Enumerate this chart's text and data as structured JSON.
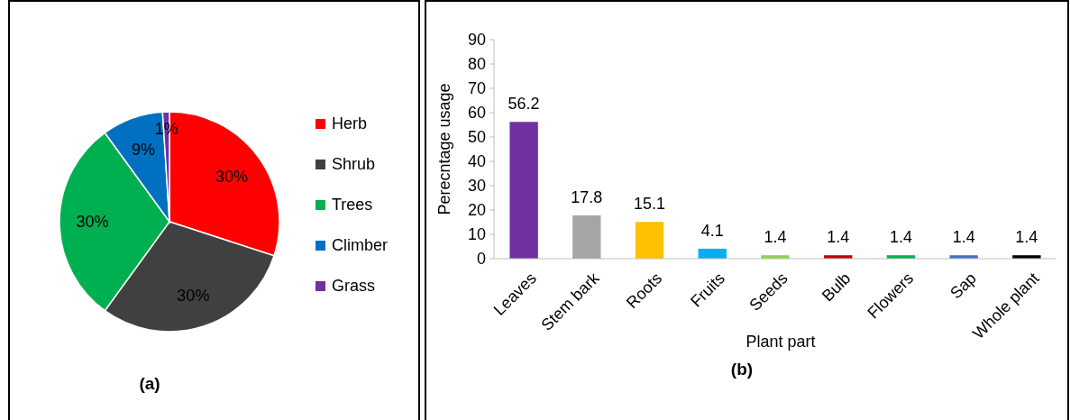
{
  "chart_data": [
    {
      "type": "pie",
      "title": "(a)",
      "categories": [
        "Herb",
        "Shrub",
        "Trees",
        "Climber",
        "Grass"
      ],
      "values": [
        30,
        30,
        30,
        9,
        1
      ],
      "colors": [
        "#ff0000",
        "#404040",
        "#00b050",
        "#0070c0",
        "#7030a0"
      ],
      "value_labels": [
        "30%",
        "30%",
        "30%",
        "9%",
        "1%"
      ],
      "legend": "right"
    },
    {
      "type": "bar",
      "title": "(b)",
      "xlabel": "Plant part",
      "ylabel": "Perecntage usage",
      "categories": [
        "Leaves",
        "Stem bark",
        "Roots",
        "Fruits",
        "Seeds",
        "Bulb",
        "Flowers",
        "Sap",
        "Whole plant"
      ],
      "values": [
        56.2,
        17.8,
        15.1,
        4.1,
        1.4,
        1.4,
        1.4,
        1.4,
        1.4
      ],
      "colors": [
        "#7030a0",
        "#a5a5a5",
        "#ffc000",
        "#00b0f0",
        "#92d050",
        "#c00000",
        "#00b050",
        "#4472c4",
        "#000000"
      ],
      "ylim": [
        0,
        90
      ],
      "yticks": [
        0,
        10,
        20,
        30,
        40,
        50,
        60,
        70,
        80,
        90
      ],
      "data_labels": true
    }
  ]
}
